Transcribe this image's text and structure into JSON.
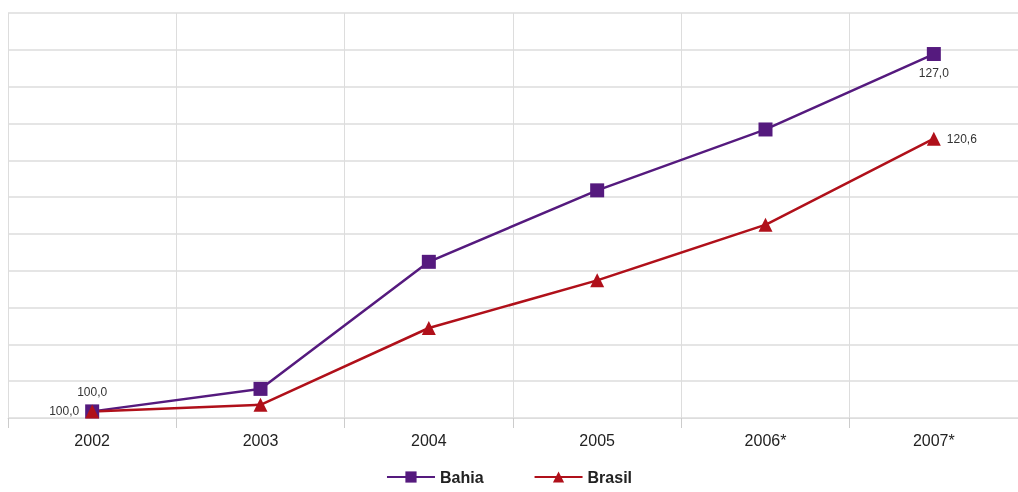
{
  "chart_data": {
    "type": "line",
    "categories": [
      "2002",
      "2003",
      "2004",
      "2005",
      "2006*",
      "2007*"
    ],
    "series": [
      {
        "name": "Bahia",
        "color": "#551a7e",
        "marker": "square",
        "values": [
          100.0,
          101.7,
          111.3,
          116.7,
          121.3,
          127.0
        ],
        "value_labels": [
          "100,0",
          null,
          null,
          null,
          null,
          "127,0"
        ]
      },
      {
        "name": "Brasil",
        "color": "#b0101a",
        "marker": "triangle",
        "values": [
          100.0,
          100.5,
          106.3,
          109.9,
          114.1,
          120.6
        ],
        "value_labels": [
          "100,0",
          null,
          null,
          null,
          null,
          "120,6"
        ]
      }
    ],
    "ylim": [
      99.5,
      130.1
    ],
    "yticks": [
      {
        "value": 99.5,
        "label": null
      },
      {
        "value": 102.3,
        "label": null
      },
      {
        "value": 105.0,
        "label": null
      },
      {
        "value": 107.8,
        "label": null
      },
      {
        "value": 110.6,
        "label": null
      },
      {
        "value": 113.4,
        "label": null
      },
      {
        "value": 116.2,
        "label": null
      },
      {
        "value": 118.9,
        "label": null
      },
      {
        "value": 121.7,
        "label": null
      },
      {
        "value": 124.5,
        "label": null
      },
      {
        "value": 127.3,
        "label": null
      },
      {
        "value": 130.1,
        "label": null
      }
    ],
    "tick_labels": "x",
    "grid": true,
    "legend": "bottom",
    "line_style": "solid"
  }
}
